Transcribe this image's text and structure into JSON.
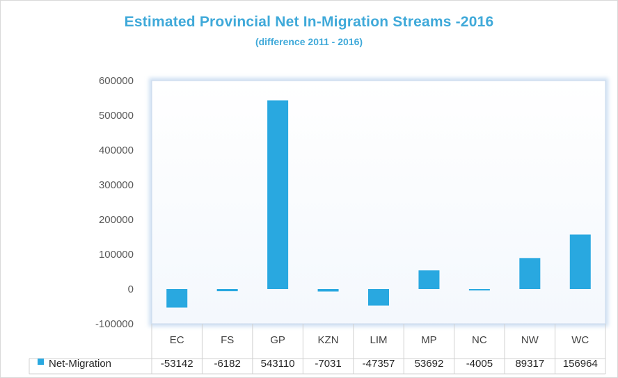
{
  "chart_data": {
    "type": "bar",
    "title": "Estimated Provincial Net In-Migration Streams -2016",
    "subtitle": "(difference 2011 - 2016)",
    "categories": [
      "EC",
      "FS",
      "GP",
      "KZN",
      "LIM",
      "MP",
      "NC",
      "NW",
      "WC"
    ],
    "series": [
      {
        "name": "Net-Migration",
        "values": [
          -53142,
          -6182,
          543110,
          -7031,
          -47357,
          53692,
          -4005,
          89317,
          156964
        ],
        "labels": [
          "-53142",
          "-6182",
          "543110",
          "-7031",
          "-47357",
          "53692",
          "-4005",
          "89317",
          "156964"
        ]
      }
    ],
    "ylim": [
      -100000,
      600000
    ],
    "yticks": [
      -100000,
      0,
      100000,
      200000,
      300000,
      400000,
      500000,
      600000
    ],
    "ytick_labels": [
      "-100000",
      "0",
      "100000",
      "200000",
      "300000",
      "400000",
      "500000",
      "600000"
    ],
    "grid": false,
    "legend": "data-table",
    "bar_color": "#29a8e0"
  }
}
